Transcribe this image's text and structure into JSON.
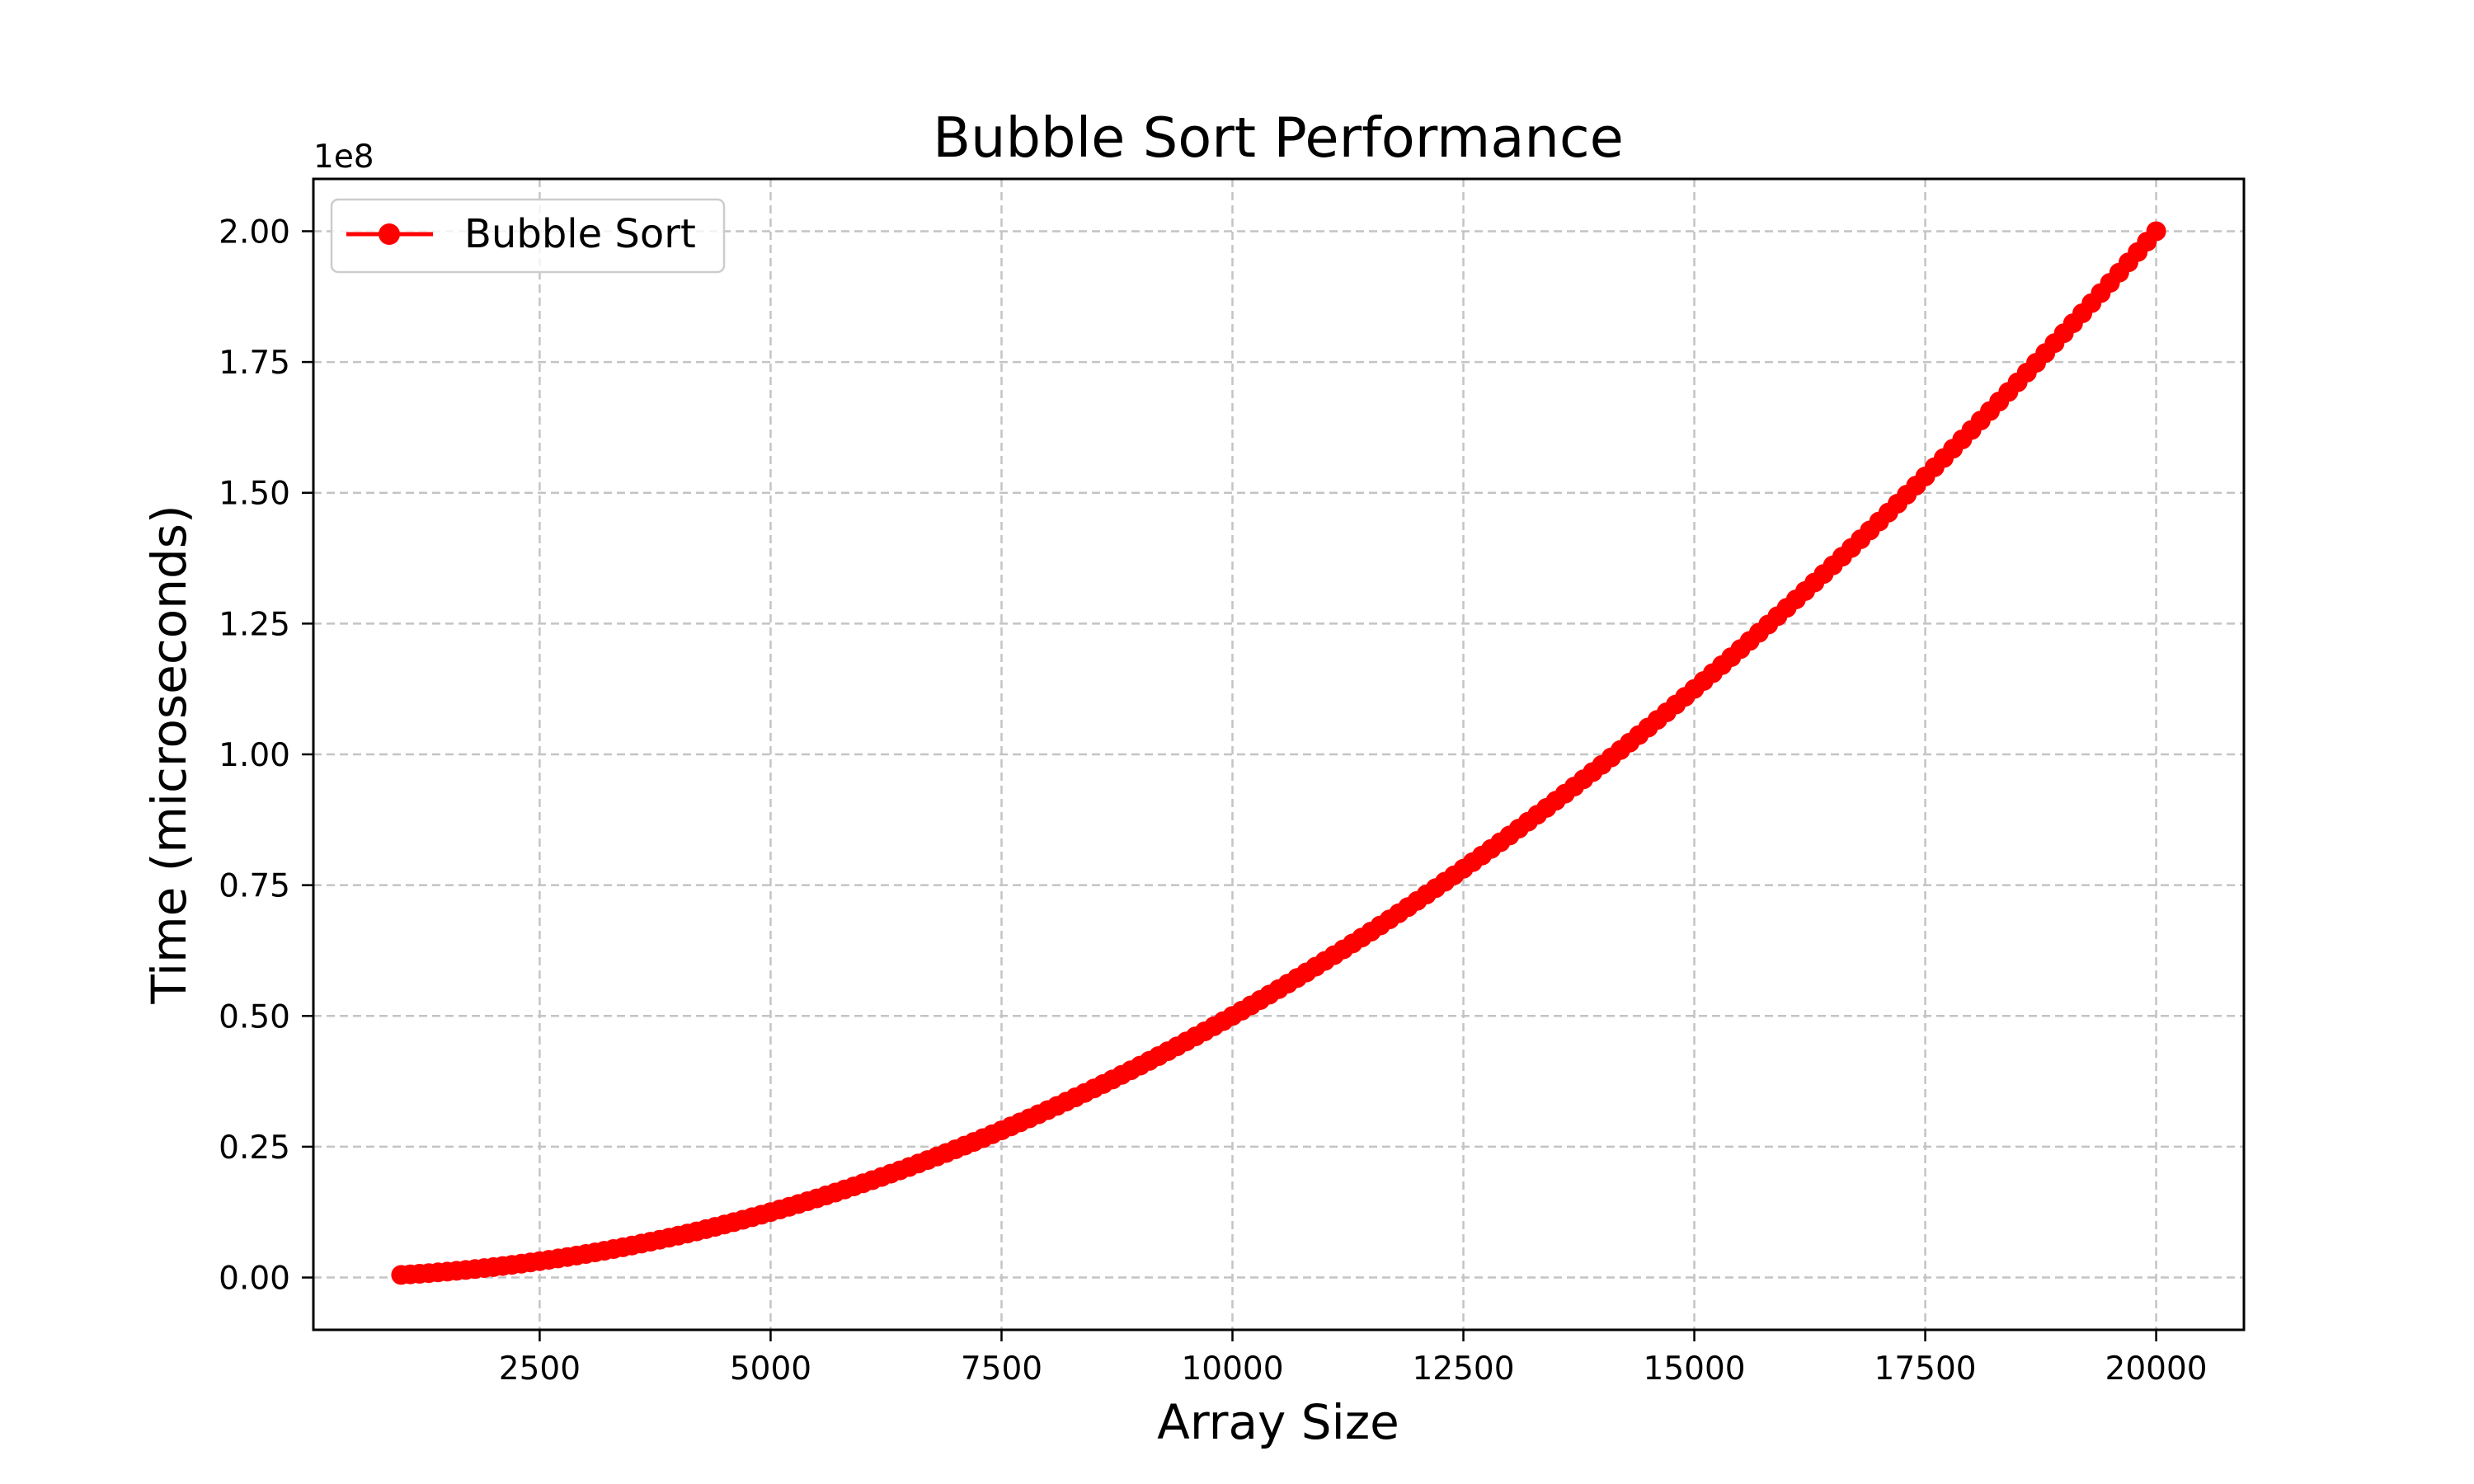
{
  "chart_data": {
    "type": "line",
    "title": "Bubble Sort Performance",
    "xlabel": "Array Size",
    "ylabel": "Time (microseconds)",
    "y_offset_label": "1e8",
    "xlim": [
      1000,
      20000
    ],
    "ylim": [
      0,
      2.0
    ],
    "y_scale_factor": 100000000,
    "x_ticks": [
      2500,
      5000,
      7500,
      10000,
      12500,
      15000,
      17500,
      20000
    ],
    "y_ticks": [
      "0.00",
      "0.25",
      "0.50",
      "0.75",
      "1.00",
      "1.25",
      "1.50",
      "1.75",
      "2.00"
    ],
    "grid": true,
    "legend_position": "top-left",
    "series": [
      {
        "name": "Bubble Sort",
        "color": "#ff0000",
        "marker": "circle",
        "formula_note_hidden": "",
        "x": [
          1000,
          1100,
          1200,
          1300,
          1400,
          1500,
          1600,
          1700,
          1800,
          1900,
          2000,
          2100,
          2200,
          2300,
          2400,
          2500,
          2600,
          2700,
          2800,
          2900,
          3000,
          3100,
          3200,
          3300,
          3400,
          3500,
          3600,
          3700,
          3800,
          3900,
          4000,
          4100,
          4200,
          4300,
          4400,
          4500,
          4600,
          4700,
          4800,
          4900,
          5000,
          5100,
          5200,
          5300,
          5400,
          5500,
          5600,
          5700,
          5800,
          5900,
          6000,
          6100,
          6200,
          6300,
          6400,
          6500,
          6600,
          6700,
          6800,
          6900,
          7000,
          7100,
          7200,
          7300,
          7400,
          7500,
          7600,
          7700,
          7800,
          7900,
          8000,
          8100,
          8200,
          8300,
          8400,
          8500,
          8600,
          8700,
          8800,
          8900,
          9000,
          9100,
          9200,
          9300,
          9400,
          9500,
          9600,
          9700,
          9800,
          9900,
          10000,
          10100,
          10200,
          10300,
          10400,
          10500,
          10600,
          10700,
          10800,
          10900,
          11000,
          11100,
          11200,
          11300,
          11400,
          11500,
          11600,
          11700,
          11800,
          11900,
          12000,
          12100,
          12200,
          12300,
          12400,
          12500,
          12600,
          12700,
          12800,
          12900,
          13000,
          13100,
          13200,
          13300,
          13400,
          13500,
          13600,
          13700,
          13800,
          13900,
          14000,
          14100,
          14200,
          14300,
          14400,
          14500,
          14600,
          14700,
          14800,
          14900,
          15000,
          15100,
          15200,
          15300,
          15400,
          15500,
          15600,
          15700,
          15800,
          15900,
          16000,
          16100,
          16200,
          16300,
          16400,
          16500,
          16600,
          16700,
          16800,
          16900,
          17000,
          17100,
          17200,
          17300,
          17400,
          17500,
          17600,
          17700,
          17800,
          17900,
          18000,
          18100,
          18200,
          18300,
          18400,
          18500,
          18600,
          18700,
          18800,
          18900,
          19000,
          19100,
          19200,
          19300,
          19400,
          19500,
          19600,
          19700,
          19800,
          19900,
          20000
        ],
        "y": [
          0.005,
          0.00605,
          0.0072,
          0.00845,
          0.0098,
          0.01125,
          0.0128,
          0.01445,
          0.0162,
          0.01805,
          0.02,
          0.02205,
          0.0242,
          0.02645,
          0.0288,
          0.03125,
          0.0338,
          0.03645,
          0.0392,
          0.04205,
          0.045,
          0.04805,
          0.0512,
          0.05445,
          0.0578,
          0.06125,
          0.0648,
          0.06845,
          0.0722,
          0.07605,
          0.08,
          0.08405,
          0.0882,
          0.09245,
          0.0968,
          0.10125,
          0.1058,
          0.11045,
          0.1152,
          0.12005,
          0.125,
          0.13005,
          0.1352,
          0.14045,
          0.1458,
          0.15125,
          0.1568,
          0.16245,
          0.1682,
          0.17405,
          0.18,
          0.18605,
          0.1922,
          0.19845,
          0.2048,
          0.21125,
          0.2178,
          0.22445,
          0.2312,
          0.23805,
          0.245,
          0.25205,
          0.2592,
          0.26645,
          0.2738,
          0.28125,
          0.2888,
          0.29645,
          0.3042,
          0.31205,
          0.32,
          0.32805,
          0.3362,
          0.34445,
          0.3528,
          0.36125,
          0.3698,
          0.37845,
          0.3872,
          0.39605,
          0.405,
          0.41405,
          0.4232,
          0.43245,
          0.4418,
          0.45125,
          0.4608,
          0.47045,
          0.4802,
          0.49005,
          0.5,
          0.51005,
          0.5202,
          0.53045,
          0.5408,
          0.55125,
          0.5618,
          0.57245,
          0.5832,
          0.59405,
          0.605,
          0.61605,
          0.6272,
          0.63845,
          0.6498,
          0.66125,
          0.6728,
          0.68445,
          0.6962,
          0.70805,
          0.72,
          0.73205,
          0.7442,
          0.75645,
          0.7688,
          0.78125,
          0.7938,
          0.80645,
          0.8192,
          0.83205,
          0.845,
          0.85805,
          0.8712,
          0.88445,
          0.8978,
          0.91125,
          0.9248,
          0.93845,
          0.9522,
          0.96605,
          0.98,
          0.99405,
          1.0082,
          1.02245,
          1.0368,
          1.05125,
          1.0658,
          1.08045,
          1.0952,
          1.11005,
          1.125,
          1.14005,
          1.1552,
          1.17045,
          1.1858,
          1.20125,
          1.2168,
          1.23245,
          1.2482,
          1.26405,
          1.28,
          1.29605,
          1.3122,
          1.32845,
          1.3448,
          1.36125,
          1.3778,
          1.39445,
          1.4112,
          1.42805,
          1.445,
          1.46205,
          1.4792,
          1.49645,
          1.5138,
          1.53125,
          1.5488,
          1.56645,
          1.5842,
          1.60205,
          1.62,
          1.63805,
          1.6562,
          1.67445,
          1.6928,
          1.71125,
          1.7298,
          1.74845,
          1.7672,
          1.78605,
          1.805,
          1.82405,
          1.8432,
          1.86245,
          1.8818,
          1.90125,
          1.9208,
          1.94045,
          1.9602,
          1.98005,
          2.0
        ]
      }
    ]
  }
}
